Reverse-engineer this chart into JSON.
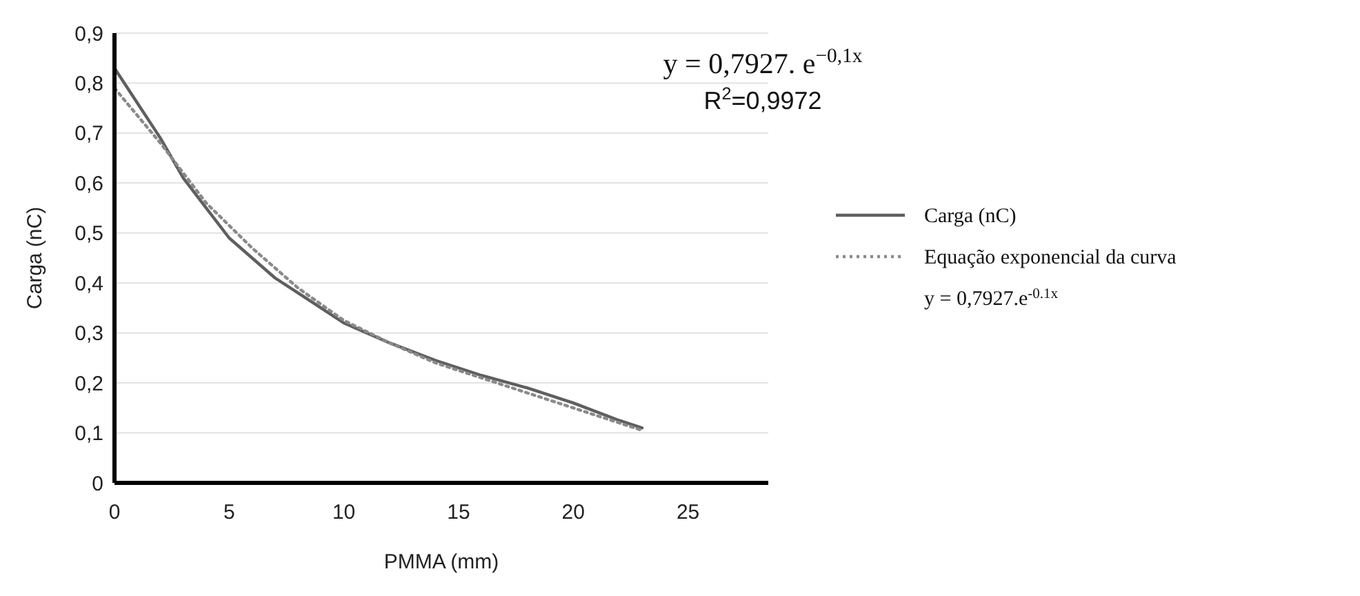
{
  "chart_data": {
    "type": "line",
    "xlabel": "PMMA (mm)",
    "ylabel": "Carga (nC)",
    "annotations": [
      "y = 0,7927. e$^{−0,1x}$",
      "R$^{2}$=0,9972"
    ],
    "xlim": [
      0,
      28.5
    ],
    "xticks": [
      0,
      5,
      10,
      15,
      20,
      25
    ],
    "ylim": [
      0,
      0.9
    ],
    "yticks": [
      {
        "value": 0,
        "label": "0"
      },
      {
        "value": 0.1,
        "label": "0,1"
      },
      {
        "value": 0.2,
        "label": "0,2"
      },
      {
        "value": 0.3,
        "label": "0,3"
      },
      {
        "value": 0.4,
        "label": "0,4"
      },
      {
        "value": 0.5,
        "label": "0,5"
      },
      {
        "value": 0.6,
        "label": "0,6"
      },
      {
        "value": 0.7,
        "label": "0,7"
      },
      {
        "value": 0.8,
        "label": "0,8"
      },
      {
        "value": 0.9,
        "label": "0,9"
      }
    ],
    "grid": "y",
    "legend": "right",
    "marker": "none",
    "series": [
      {
        "name": "Carga (nC)",
        "color": "#5f5f5f",
        "line_style": "solid",
        "x": [
          0,
          1,
          2,
          3,
          4,
          5,
          6,
          7,
          8,
          10,
          12,
          14,
          16,
          18,
          20,
          22,
          23
        ],
        "values": [
          0.83,
          0.76,
          0.69,
          0.61,
          0.55,
          0.49,
          0.45,
          0.41,
          0.38,
          0.32,
          0.28,
          0.245,
          0.215,
          0.19,
          0.16,
          0.125,
          0.11
        ]
      },
      {
        "name": "Equação exponencial da curva y = 0,7927.e$^{-0.1x}$",
        "color": "#8a8a8a",
        "line_style": "dotted",
        "x": [
          0,
          2,
          4,
          6,
          8,
          10,
          12,
          14,
          16,
          18,
          20,
          23
        ],
        "values": [
          0.79,
          0.68,
          0.56,
          0.47,
          0.39,
          0.325,
          0.28,
          0.24,
          0.21,
          0.18,
          0.15,
          0.105
        ]
      }
    ]
  }
}
